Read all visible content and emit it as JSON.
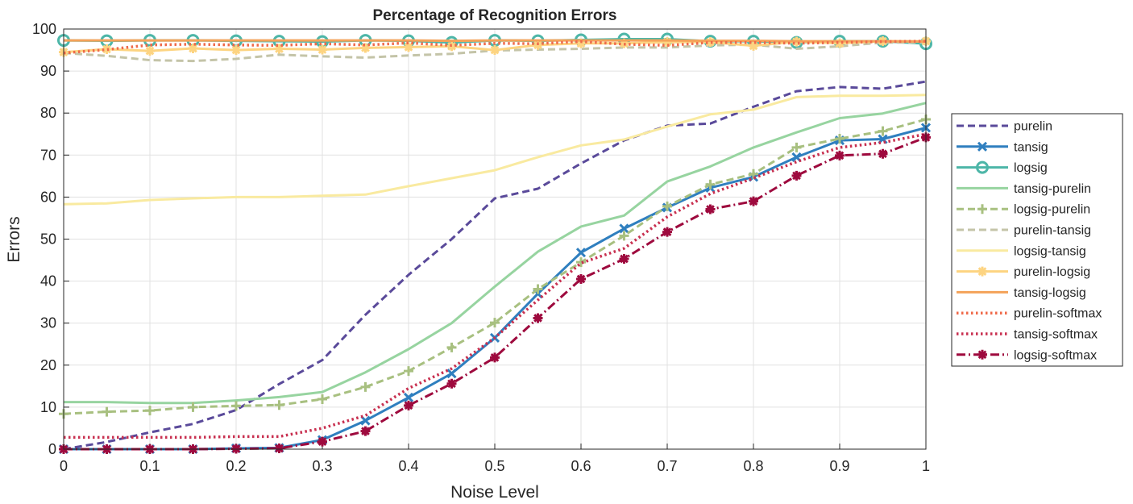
{
  "chart_data": {
    "type": "line",
    "title": "Percentage of Recognition Errors",
    "xlabel": "Noise Level",
    "ylabel": "Errors",
    "xlim": [
      0,
      1
    ],
    "ylim": [
      0,
      100
    ],
    "grid": true,
    "legend_position": "outside-right",
    "xticks": [
      "0",
      "0.1",
      "0.2",
      "0.3",
      "0.4",
      "0.5",
      "0.6",
      "0.7",
      "0.8",
      "0.9",
      "1"
    ],
    "yticks": [
      "0",
      "10",
      "20",
      "30",
      "40",
      "50",
      "60",
      "70",
      "80",
      "90",
      "100"
    ],
    "x": [
      0,
      0.05,
      0.1,
      0.15,
      0.2,
      0.25,
      0.3,
      0.35,
      0.4,
      0.45,
      0.5,
      0.55,
      0.6,
      0.65,
      0.7,
      0.75,
      0.8,
      0.85,
      0.9,
      0.95,
      1
    ],
    "series": [
      {
        "name": "purelin",
        "color": "#5a4a9a",
        "dash": "dashed",
        "marker": "none",
        "values": [
          0,
          1.7,
          4,
          6,
          9.3,
          15.5,
          21.2,
          32,
          41.5,
          50,
          59.7,
          62,
          68,
          73.5,
          77,
          77.5,
          81.5,
          85.2,
          86.2,
          85.8,
          87.5
        ]
      },
      {
        "name": "tansig",
        "color": "#2f7fbf",
        "dash": "solid",
        "marker": "x",
        "values": [
          0,
          0,
          0,
          0,
          0.2,
          0.3,
          2.2,
          6.8,
          12.3,
          18,
          26.5,
          37,
          46.8,
          52.5,
          57.5,
          62.2,
          64.8,
          69.5,
          73.5,
          73.8,
          76.5
        ]
      },
      {
        "name": "logsig",
        "color": "#4db6a8",
        "dash": "solid",
        "marker": "circle",
        "values": [
          97.3,
          97.2,
          97.3,
          97.3,
          97.2,
          97.1,
          97,
          97.3,
          97.2,
          96.8,
          97.3,
          97.2,
          97.4,
          97.6,
          97.6,
          97.1,
          97.1,
          96.8,
          97.1,
          97.1,
          96.5
        ]
      },
      {
        "name": "tansig-purelin",
        "color": "#97d4a0",
        "dash": "solid",
        "marker": "none",
        "values": [
          11.2,
          11.2,
          11,
          11,
          11.6,
          12.4,
          13.6,
          18.3,
          23.8,
          30,
          38.7,
          47,
          53,
          55.6,
          63.7,
          67.3,
          71.8,
          75.4,
          78.8,
          79.9,
          82.4
        ]
      },
      {
        "name": "logsig-purelin",
        "color": "#a8c080",
        "dash": "dashed",
        "marker": "plus",
        "values": [
          8.4,
          8.9,
          9.2,
          10,
          10.3,
          10.5,
          11.9,
          14.8,
          18.6,
          24.2,
          30.1,
          38.1,
          44.5,
          50.8,
          57.8,
          63,
          65.5,
          71.8,
          73.9,
          75.7,
          78.5
        ]
      },
      {
        "name": "purelin-tansig",
        "color": "#c4c4a8",
        "dash": "dashed",
        "marker": "none",
        "values": [
          94.3,
          93.6,
          92.6,
          92.4,
          92.9,
          93.9,
          93.5,
          93.2,
          93.7,
          94.1,
          94.9,
          95.1,
          95.3,
          95.6,
          95.6,
          96.1,
          96.3,
          95.3,
          95.9,
          96.8,
          96.8
        ]
      },
      {
        "name": "logsig-tansig",
        "color": "#f9eaa0",
        "dash": "solid",
        "marker": "none",
        "values": [
          58.3,
          58.5,
          59.3,
          59.7,
          60,
          60,
          60.3,
          60.6,
          62.6,
          64.5,
          66.4,
          69.5,
          72.3,
          73.7,
          76.8,
          79.7,
          80.8,
          83.8,
          84.1,
          84.1,
          84.3
        ]
      },
      {
        "name": "purelin-logsig",
        "color": "#fdd481",
        "dash": "solid",
        "marker": "asterisk",
        "values": [
          94.5,
          95.2,
          94.8,
          95.4,
          95,
          95.3,
          95.1,
          95.5,
          95.7,
          95.9,
          95,
          96.2,
          96.6,
          96.6,
          96.9,
          96.9,
          96,
          97,
          96.6,
          97.1,
          97.1
        ]
      },
      {
        "name": "tansig-logsig",
        "color": "#f4a259",
        "dash": "solid",
        "marker": "none",
        "values": [
          97.3,
          97.3,
          97.3,
          97.3,
          97.3,
          97.3,
          97.3,
          97.3,
          97.3,
          97.2,
          97.3,
          97.3,
          97.3,
          97.3,
          97.3,
          97.2,
          97.2,
          97.1,
          97.1,
          97.1,
          97
        ]
      },
      {
        "name": "purelin-softmax",
        "color": "#ef6a4a",
        "dash": "dotted",
        "marker": "none",
        "values": [
          94.3,
          95.1,
          96.2,
          96.4,
          96.2,
          96.1,
          96.5,
          96.2,
          96.7,
          96.1,
          96.6,
          96.5,
          97,
          96.4,
          96.1,
          96.8,
          96.8,
          96.6,
          96.8,
          97,
          97.1
        ]
      },
      {
        "name": "tansig-softmax",
        "color": "#c83050",
        "dash": "dotted",
        "marker": "none",
        "values": [
          2.8,
          2.8,
          2.8,
          2.8,
          3,
          3,
          5,
          8,
          14.5,
          19.2,
          26.5,
          35.5,
          44.3,
          47.8,
          55.3,
          60.8,
          64.5,
          68.4,
          71.8,
          73,
          75
        ]
      },
      {
        "name": "logsig-softmax",
        "color": "#9e0a3e",
        "dash": "dashdot",
        "marker": "asterisk",
        "values": [
          0,
          0,
          0,
          0,
          0.1,
          0.2,
          1.8,
          4.3,
          10.4,
          15.6,
          21.8,
          31.2,
          40.5,
          45.3,
          51.7,
          57.1,
          59,
          65.1,
          69.9,
          70.3,
          74.2
        ]
      }
    ]
  }
}
